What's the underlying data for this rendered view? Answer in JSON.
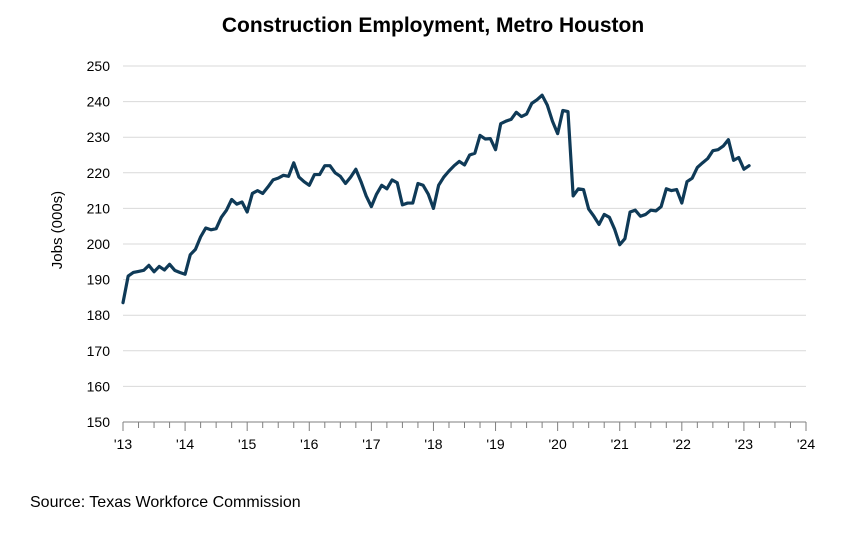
{
  "chart_data": {
    "type": "line",
    "title": "Construction Employment, Metro Houston",
    "xlabel": "",
    "ylabel": "Jobs (000s)",
    "ylim": [
      150,
      250
    ],
    "yticks": [
      150,
      160,
      170,
      180,
      190,
      200,
      210,
      220,
      230,
      240,
      250
    ],
    "x_tick_labels": [
      "'13",
      "'14",
      "'15",
      "'16",
      "'17",
      "'18",
      "'19",
      "'20",
      "'21",
      "'22",
      "'23",
      "'24"
    ],
    "x_unit": "months since Jan 2013",
    "xlim": [
      0,
      132
    ],
    "grid": true,
    "line_color": "#0f3a57",
    "series": [
      {
        "name": "Construction Employment",
        "x": [
          0,
          1,
          2,
          3,
          4,
          5,
          6,
          7,
          8,
          9,
          10,
          11,
          12,
          13,
          14,
          15,
          16,
          17,
          18,
          19,
          20,
          21,
          22,
          23,
          24,
          25,
          26,
          27,
          28,
          29,
          30,
          31,
          32,
          33,
          34,
          35,
          36,
          37,
          38,
          39,
          40,
          41,
          42,
          43,
          44,
          45,
          46,
          47,
          48,
          49,
          50,
          51,
          52,
          53,
          54,
          55,
          56,
          57,
          58,
          59,
          60,
          61,
          62,
          63,
          64,
          65,
          66,
          67,
          68,
          69,
          70,
          71,
          72,
          73,
          74,
          75,
          76,
          77,
          78,
          79,
          80,
          81,
          82,
          83,
          84,
          85,
          86,
          87,
          88,
          89,
          90,
          91,
          92,
          93,
          94,
          95,
          96,
          97,
          98,
          99,
          100,
          101,
          102,
          103,
          104,
          105,
          106,
          107,
          108,
          109,
          110,
          111,
          112,
          113,
          114,
          115,
          116,
          117,
          118,
          119,
          120,
          121
        ],
        "values": [
          183.5,
          191,
          192,
          192.3,
          192.6,
          194,
          192.2,
          193.7,
          192.7,
          194.3,
          192.6,
          192,
          191.5,
          197,
          198.5,
          202,
          204.5,
          204,
          204.3,
          207.5,
          209.5,
          212.5,
          211.2,
          211.8,
          209,
          214.2,
          215,
          214.2,
          216,
          218,
          218.5,
          219.3,
          219,
          222.8,
          218.8,
          217.5,
          216.5,
          219.5,
          219.5,
          222,
          222,
          220,
          219,
          217,
          218.8,
          221,
          217.5,
          213.5,
          210.5,
          214,
          216.5,
          215.5,
          218,
          217.2,
          211,
          211.5,
          211.5,
          217,
          216.5,
          214,
          210,
          216.5,
          218.8,
          220.5,
          222,
          223.2,
          222.2,
          225,
          225.5,
          230.5,
          229.5,
          229.6,
          226.5,
          233.8,
          234.5,
          235,
          237,
          235.8,
          236.5,
          239.5,
          240.5,
          241.8,
          239,
          234.5,
          231,
          237.5,
          237.2,
          213.5,
          215.5,
          215.3,
          209.8,
          207.8,
          205.5,
          208.3,
          207.5,
          204.2,
          199.8,
          201.5,
          209,
          209.5,
          207.8,
          208.3,
          209.5,
          209.3,
          210.5,
          215.5,
          215,
          215.3,
          211.5,
          217.5,
          218.5,
          221.5,
          222.8,
          224,
          226.2,
          226.5,
          227.5,
          229.3,
          223.5,
          224.3,
          221,
          222
        ]
      }
    ]
  },
  "source": "Source: Texas Workforce Commission"
}
